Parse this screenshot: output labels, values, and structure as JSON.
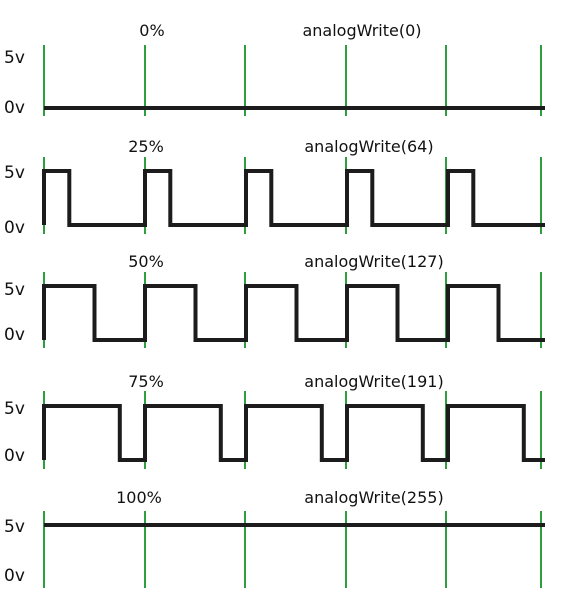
{
  "colors": {
    "grid_line": "#2e9e3e",
    "signal_line": "#1c1c1c",
    "background": "#ffffff"
  },
  "panels": [
    {
      "duty_label": "0%",
      "call_label": "analogWrite(0)",
      "duty_fraction": 0.0,
      "v_high": "5v",
      "v_low": "0v"
    },
    {
      "duty_label": "25%",
      "call_label": "analogWrite(64)",
      "duty_fraction": 0.25,
      "v_high": "5v",
      "v_low": "0v"
    },
    {
      "duty_label": "50%",
      "call_label": "analogWrite(127)",
      "duty_fraction": 0.5,
      "v_high": "5v",
      "v_low": "0v"
    },
    {
      "duty_label": "75%",
      "call_label": "analogWrite(191)",
      "duty_fraction": 0.75,
      "v_high": "5v",
      "v_low": "0v"
    },
    {
      "duty_label": "100%",
      "call_label": "analogWrite(255)",
      "duty_fraction": 1.0,
      "v_high": "5v",
      "v_low": "0v"
    }
  ]
}
